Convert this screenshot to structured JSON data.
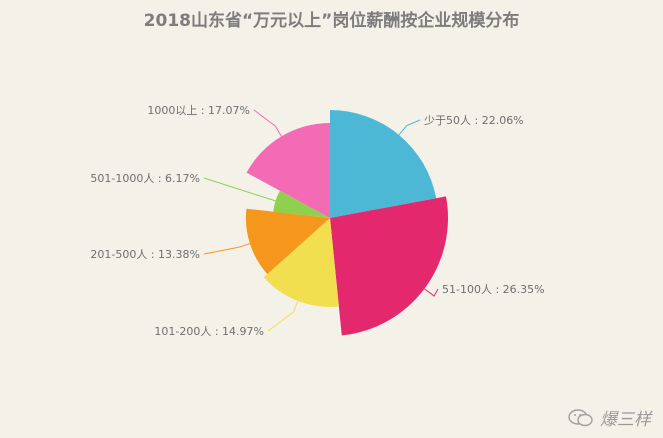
{
  "chart_data": {
    "type": "pie",
    "variant": "rose",
    "title": "2018山东省“万元以上”岗位薪酬按企业规模分布",
    "slices": [
      {
        "label": "少于50人 : 22.06%",
        "value": 22.06,
        "color": "#4db7d6"
      },
      {
        "label": "51-100人 : 26.35%",
        "value": 26.35,
        "color": "#e3286e"
      },
      {
        "label": "101-200人 : 14.97%",
        "value": 14.97,
        "color": "#f2df4f"
      },
      {
        "label": "201-500人 : 13.38%",
        "value": 13.38,
        "color": "#f5971d"
      },
      {
        "label": "501-1000人 : 6.17%",
        "value": 6.17,
        "color": "#8fd14f"
      },
      {
        "label": "1000以上 : 17.07%",
        "value": 17.07,
        "color": "#f26bb4"
      }
    ]
  },
  "watermark": {
    "text": "爆三样",
    "icon": "wechat-icon"
  }
}
